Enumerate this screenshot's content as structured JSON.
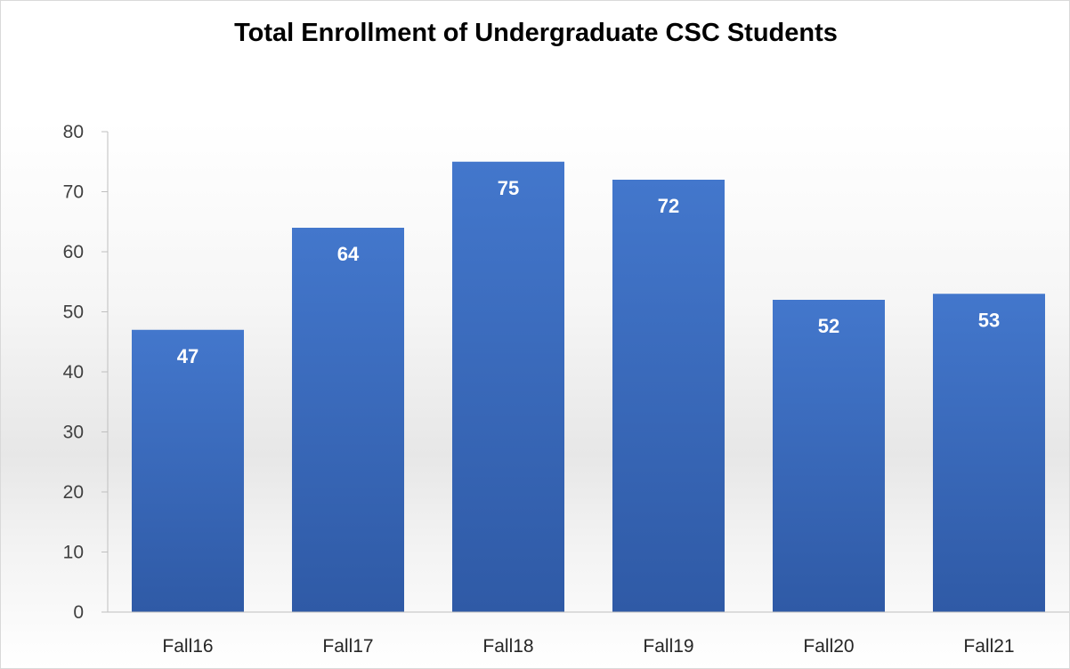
{
  "chart_data": {
    "type": "bar",
    "title": "Total Enrollment of Undergraduate CSC Students",
    "categories": [
      "Fall16",
      "Fall17",
      "Fall18",
      "Fall19",
      "Fall20",
      "Fall21"
    ],
    "values": [
      47,
      64,
      75,
      72,
      52,
      53
    ],
    "xlabel": "",
    "ylabel": "",
    "ylim": [
      0,
      80
    ],
    "yticks": [
      0,
      10,
      20,
      30,
      40,
      50,
      60,
      70,
      80
    ],
    "grid": false,
    "legend": "none",
    "data_labels": "inside-end",
    "bar_color": "#3a6bc0",
    "bar_color_top": "#4377cc",
    "bar_color_bottom": "#2f5aa6"
  }
}
